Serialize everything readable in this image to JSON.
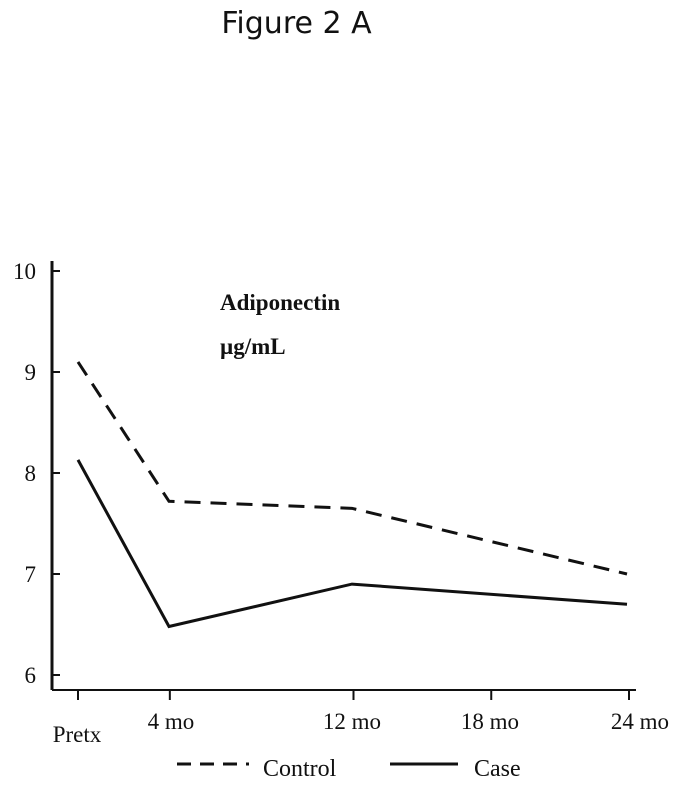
{
  "figure_title": "Figure 2 A",
  "chart_data": {
    "type": "line",
    "annotation": [
      "Adiponectin",
      "µg/mL"
    ],
    "ylim": [
      5.85,
      10.1
    ],
    "y_ticks": [
      6,
      7,
      8,
      9,
      10
    ],
    "y_tick_labels": [
      "6",
      "7",
      "8",
      "9",
      "10"
    ],
    "x_ticks": [
      0,
      4,
      12,
      18,
      24
    ],
    "x_tick_labels": [
      "Pretx",
      "4 mo",
      "12 mo",
      "18 mo",
      "24 mo"
    ],
    "xlim": [
      0,
      24
    ],
    "series": [
      {
        "name": "Control",
        "style": "dashed",
        "color": "#111111",
        "x": [
          0,
          4,
          12,
          24
        ],
        "y": [
          9.1,
          7.72,
          7.65,
          7.0
        ]
      },
      {
        "name": "Case",
        "style": "solid",
        "color": "#111111",
        "x": [
          0,
          4,
          12,
          24
        ],
        "y": [
          8.13,
          6.48,
          6.9,
          6.7
        ]
      }
    ]
  }
}
